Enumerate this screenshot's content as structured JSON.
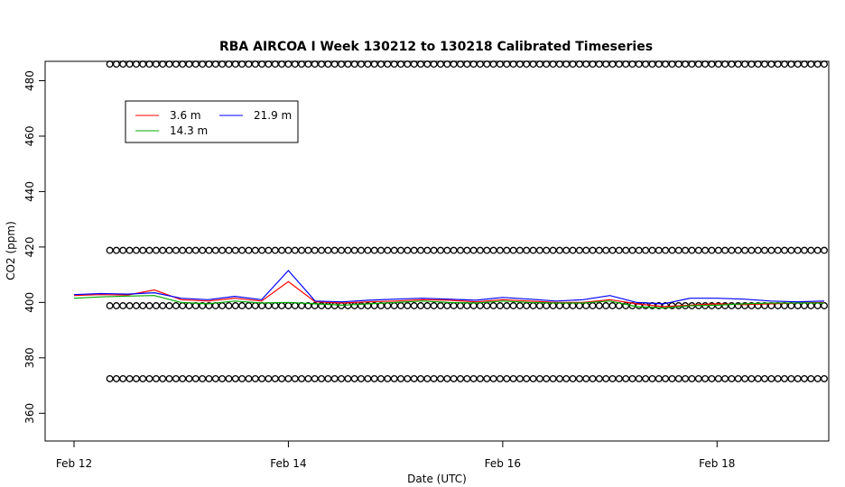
{
  "chart_data": {
    "type": "line",
    "title": "RBA AIRCOA I  Week 130212 to 130218  Calibrated Timeseries",
    "xlabel": "Date (UTC)",
    "ylabel": "CO2 (ppm)",
    "x_start": "2013-02-12",
    "x_end": "2013-02-19",
    "xlim": [
      "2013-02-12",
      "2013-02-19"
    ],
    "ylim": [
      350,
      487
    ],
    "x_ticks": [
      {
        "value": "2013-02-12",
        "label": "Feb 12"
      },
      {
        "value": "2013-02-14",
        "label": "Feb 14"
      },
      {
        "value": "2013-02-16",
        "label": "Feb 16"
      },
      {
        "value": "2013-02-18",
        "label": "Feb 18"
      }
    ],
    "y_ticks": [
      {
        "value": 360,
        "label": "360"
      },
      {
        "value": 380,
        "label": "380"
      },
      {
        "value": 400,
        "label": "400"
      },
      {
        "value": 420,
        "label": "420"
      },
      {
        "value": 440,
        "label": "440"
      },
      {
        "value": 460,
        "label": "460"
      },
      {
        "value": 480,
        "label": "480"
      }
    ],
    "grid": false,
    "legend_position": "top-left",
    "series": [
      {
        "name": "3.6 m",
        "color": "#ff0000",
        "x": [
          "2013-02-12T00:00",
          "2013-02-12T06:00",
          "2013-02-12T12:00",
          "2013-02-12T18:00",
          "2013-02-13T00:00",
          "2013-02-13T06:00",
          "2013-02-13T12:00",
          "2013-02-13T18:00",
          "2013-02-14T00:00",
          "2013-02-14T06:00",
          "2013-02-14T12:00",
          "2013-02-14T18:00",
          "2013-02-15T00:00",
          "2013-02-15T06:00",
          "2013-02-15T12:00",
          "2013-02-15T18:00",
          "2013-02-16T00:00",
          "2013-02-16T06:00",
          "2013-02-16T12:00",
          "2013-02-16T18:00",
          "2013-02-17T00:00",
          "2013-02-17T06:00",
          "2013-02-17T12:00",
          "2013-02-17T18:00",
          "2013-02-18T00:00",
          "2013-02-18T06:00",
          "2013-02-18T12:00",
          "2013-02-18T18:00",
          "2013-02-19T00:00"
        ],
        "y": [
          402.5,
          402.8,
          402.7,
          404.5,
          401.0,
          400.5,
          401.5,
          400.5,
          407.5,
          400.2,
          399.8,
          400.2,
          400.5,
          401.0,
          400.8,
          400.2,
          401.0,
          400.5,
          400.0,
          400.0,
          401.0,
          399.5,
          398.5,
          399.0,
          399.5,
          399.2,
          399.5,
          399.8,
          400.0
        ]
      },
      {
        "name": "14.3 m",
        "color": "#00aa00",
        "x": [
          "2013-02-12T00:00",
          "2013-02-12T06:00",
          "2013-02-12T12:00",
          "2013-02-12T18:00",
          "2013-02-13T00:00",
          "2013-02-13T06:00",
          "2013-02-13T12:00",
          "2013-02-13T18:00",
          "2013-02-14T00:00",
          "2013-02-14T06:00",
          "2013-02-14T12:00",
          "2013-02-14T18:00",
          "2013-02-15T00:00",
          "2013-02-15T06:00",
          "2013-02-15T12:00",
          "2013-02-15T18:00",
          "2013-02-16T00:00",
          "2013-02-16T06:00",
          "2013-02-16T12:00",
          "2013-02-16T18:00",
          "2013-02-17T00:00",
          "2013-02-17T06:00",
          "2013-02-17T12:00",
          "2013-02-17T18:00",
          "2013-02-18T00:00",
          "2013-02-18T06:00",
          "2013-02-18T12:00",
          "2013-02-18T18:00",
          "2013-02-19T00:00"
        ],
        "y": [
          401.5,
          402.0,
          402.3,
          402.5,
          400.0,
          399.5,
          400.5,
          399.8,
          400.0,
          399.5,
          399.0,
          399.5,
          400.0,
          400.5,
          400.0,
          399.8,
          400.5,
          400.0,
          399.8,
          399.8,
          400.5,
          398.5,
          398.0,
          398.8,
          399.0,
          399.5,
          399.8,
          399.8,
          399.8
        ]
      },
      {
        "name": "21.9 m",
        "color": "#0000ff",
        "x": [
          "2013-02-12T00:00",
          "2013-02-12T06:00",
          "2013-02-12T12:00",
          "2013-02-12T18:00",
          "2013-02-13T00:00",
          "2013-02-13T06:00",
          "2013-02-13T12:00",
          "2013-02-13T18:00",
          "2013-02-14T00:00",
          "2013-02-14T06:00",
          "2013-02-14T12:00",
          "2013-02-14T18:00",
          "2013-02-15T00:00",
          "2013-02-15T06:00",
          "2013-02-15T12:00",
          "2013-02-15T18:00",
          "2013-02-16T00:00",
          "2013-02-16T06:00",
          "2013-02-16T12:00",
          "2013-02-16T18:00",
          "2013-02-17T00:00",
          "2013-02-17T06:00",
          "2013-02-17T12:00",
          "2013-02-17T18:00",
          "2013-02-18T00:00",
          "2013-02-18T06:00",
          "2013-02-18T12:00",
          "2013-02-18T18:00",
          "2013-02-19T00:00"
        ],
        "y": [
          402.8,
          403.2,
          403.0,
          403.5,
          401.5,
          401.0,
          402.2,
          401.0,
          411.5,
          400.5,
          400.2,
          400.8,
          401.2,
          401.5,
          401.2,
          400.8,
          401.8,
          401.2,
          400.5,
          401.0,
          402.5,
          400.0,
          399.5,
          401.5,
          401.5,
          401.2,
          400.5,
          400.2,
          400.5
        ]
      },
      {
        "name": "",
        "type": "scatter",
        "marker": "circle-open",
        "color": "#000000",
        "levels": [
          486,
          418.8,
          398.8,
          372.5
        ],
        "x_start": "2013-02-12T08:00",
        "x_end": "2013-02-19T00:00",
        "points_per_level": 109
      }
    ]
  }
}
